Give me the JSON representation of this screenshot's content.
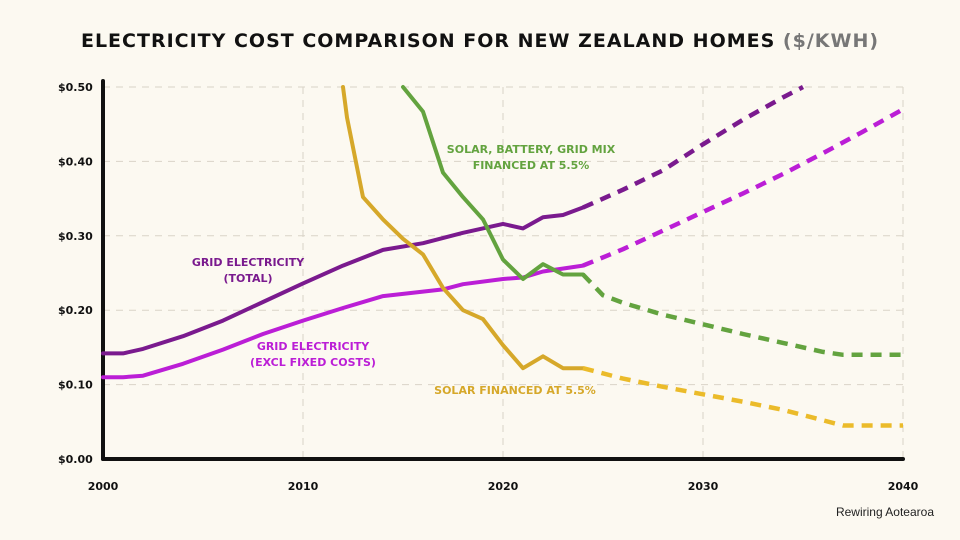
{
  "chart_data": {
    "type": "line",
    "title": "ELECTRICITY COST COMPARISON FOR NEW ZEALAND HOMES",
    "title_unit": "($/KWH)",
    "xlabel": "",
    "ylabel": "",
    "xlim": [
      2000,
      2040
    ],
    "ylim": [
      0,
      0.5
    ],
    "x_ticks": [
      "2000",
      "2010",
      "2020",
      "2030",
      "2040"
    ],
    "y_ticks": [
      "$0.00",
      "$0.10",
      "$0.20",
      "$0.30",
      "$0.40",
      "$0.50"
    ],
    "grid": true,
    "series": [
      {
        "key": "grid_total",
        "color": "#7a1a8e",
        "label_lines": [
          "GRID ELECTRICITY",
          "(TOTAL)"
        ],
        "historical": [
          [
            2000,
            0.142
          ],
          [
            2001,
            0.142
          ],
          [
            2002,
            0.148
          ],
          [
            2004,
            0.165
          ],
          [
            2006,
            0.186
          ],
          [
            2008,
            0.211
          ],
          [
            2010,
            0.236
          ],
          [
            2012,
            0.26
          ],
          [
            2014,
            0.281
          ],
          [
            2016,
            0.29
          ],
          [
            2018,
            0.304
          ],
          [
            2020,
            0.316
          ],
          [
            2021,
            0.31
          ],
          [
            2022,
            0.325
          ],
          [
            2023,
            0.328
          ],
          [
            2024,
            0.338
          ]
        ],
        "projection": [
          [
            2024,
            0.338
          ],
          [
            2026,
            0.362
          ],
          [
            2028,
            0.388
          ],
          [
            2030,
            0.423
          ],
          [
            2032,
            0.456
          ],
          [
            2034,
            0.486
          ],
          [
            2035,
            0.5
          ]
        ]
      },
      {
        "key": "grid_excl_fixed",
        "color": "#bb1ed6",
        "label_lines": [
          "GRID ELECTRICITY",
          "(EXCL FIXED COSTS)"
        ],
        "historical": [
          [
            2000,
            0.11
          ],
          [
            2001,
            0.11
          ],
          [
            2002,
            0.112
          ],
          [
            2004,
            0.128
          ],
          [
            2006,
            0.147
          ],
          [
            2008,
            0.168
          ],
          [
            2010,
            0.186
          ],
          [
            2012,
            0.203
          ],
          [
            2014,
            0.219
          ],
          [
            2016,
            0.225
          ],
          [
            2017,
            0.228
          ],
          [
            2018,
            0.235
          ],
          [
            2020,
            0.242
          ],
          [
            2021,
            0.244
          ],
          [
            2022,
            0.252
          ],
          [
            2024,
            0.26
          ]
        ],
        "projection": [
          [
            2024,
            0.26
          ],
          [
            2026,
            0.282
          ],
          [
            2028,
            0.307
          ],
          [
            2030,
            0.332
          ],
          [
            2032,
            0.357
          ],
          [
            2034,
            0.383
          ],
          [
            2036,
            0.411
          ],
          [
            2038,
            0.44
          ],
          [
            2040,
            0.47
          ]
        ]
      },
      {
        "key": "solar_battery_grid",
        "color": "#63a33f",
        "label_lines": [
          "SOLAR, BATTERY, GRID MIX",
          "FINANCED AT 5.5%"
        ],
        "historical": [
          [
            2015,
            0.5
          ],
          [
            2016,
            0.467
          ],
          [
            2017,
            0.385
          ],
          [
            2018,
            0.352
          ],
          [
            2019,
            0.322
          ],
          [
            2020,
            0.268
          ],
          [
            2021,
            0.242
          ],
          [
            2022,
            0.262
          ],
          [
            2023,
            0.248
          ],
          [
            2024,
            0.248
          ]
        ],
        "projection": [
          [
            2024,
            0.248
          ],
          [
            2025,
            0.22
          ],
          [
            2026,
            0.21
          ],
          [
            2028,
            0.194
          ],
          [
            2030,
            0.181
          ],
          [
            2032,
            0.168
          ],
          [
            2034,
            0.156
          ],
          [
            2036,
            0.144
          ],
          [
            2037,
            0.14
          ],
          [
            2040,
            0.14
          ]
        ]
      },
      {
        "key": "solar_only",
        "color": "#d6a82a",
        "projection_color": "#ebbb2a",
        "label_lines": [
          "SOLAR FINANCED AT 5.5%"
        ],
        "historical": [
          [
            2012,
            0.5
          ],
          [
            2012.2,
            0.459
          ],
          [
            2013,
            0.352
          ],
          [
            2014,
            0.322
          ],
          [
            2015,
            0.296
          ],
          [
            2016,
            0.275
          ],
          [
            2017,
            0.23
          ],
          [
            2018,
            0.2
          ],
          [
            2019,
            0.188
          ],
          [
            2020,
            0.153
          ],
          [
            2021,
            0.122
          ],
          [
            2022,
            0.138
          ],
          [
            2023,
            0.122
          ],
          [
            2024,
            0.122
          ]
        ],
        "projection": [
          [
            2024,
            0.122
          ],
          [
            2026,
            0.108
          ],
          [
            2028,
            0.097
          ],
          [
            2030,
            0.087
          ],
          [
            2032,
            0.077
          ],
          [
            2034,
            0.066
          ],
          [
            2036,
            0.052
          ],
          [
            2037,
            0.045
          ],
          [
            2040,
            0.045
          ]
        ]
      }
    ]
  },
  "credit": "Rewiring Aotearoa"
}
